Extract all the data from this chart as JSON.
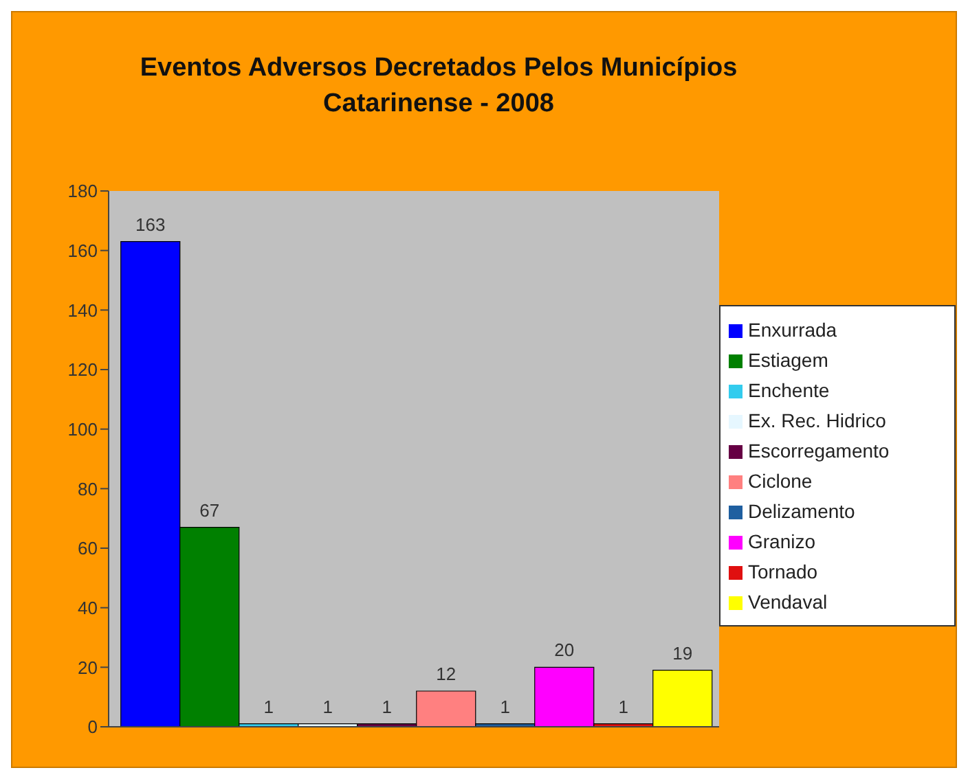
{
  "chart_data": {
    "type": "bar",
    "title": "Eventos Adversos Decretados Pelos Municípios\nCatarinense - 2008",
    "categories": [
      null
    ],
    "series": [
      {
        "name": "Enxurrada",
        "color": "#0000ff",
        "values": [
          163
        ]
      },
      {
        "name": "Estiagem",
        "color": "#008000",
        "values": [
          67
        ]
      },
      {
        "name": "Enchente",
        "color": "#33ccee",
        "values": [
          1
        ]
      },
      {
        "name": "Ex. Rec. Hidrico",
        "color": "#e6f7ff",
        "values": [
          1
        ]
      },
      {
        "name": "Escorregamento",
        "color": "#660044",
        "values": [
          1
        ]
      },
      {
        "name": "Ciclone",
        "color": "#ff8080",
        "values": [
          12
        ]
      },
      {
        "name": "Delizamento",
        "color": "#1f5fa0",
        "values": [
          1
        ]
      },
      {
        "name": "Granizo",
        "color": "#ff00ff",
        "values": [
          20
        ]
      },
      {
        "name": "Tornado",
        "color": "#e01010",
        "values": [
          1
        ]
      },
      {
        "name": "Vendaval",
        "color": "#ffff00",
        "values": [
          19
        ]
      }
    ],
    "ylim": [
      0,
      180
    ],
    "yticks": [
      0,
      20,
      40,
      60,
      80,
      100,
      120,
      140,
      160,
      180
    ],
    "grid": false,
    "legend": "right",
    "data_labels": true
  }
}
